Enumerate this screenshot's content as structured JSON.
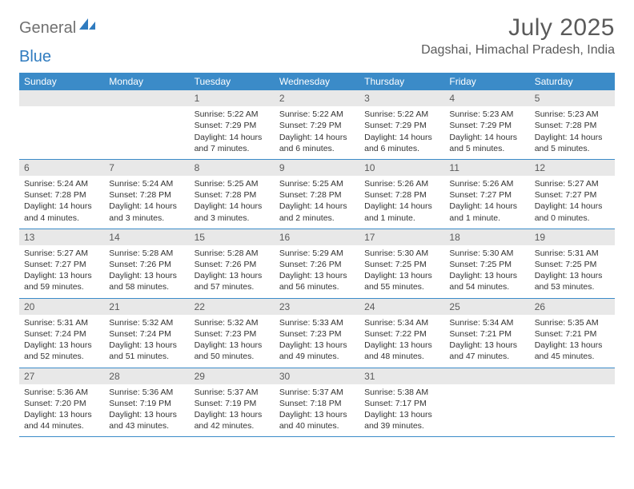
{
  "brand": {
    "general": "General",
    "blue": "Blue"
  },
  "title": "July 2025",
  "location": "Dagshai, Himachal Pradesh, India",
  "colors": {
    "header_bg": "#3b8bc8",
    "header_text": "#ffffff",
    "daynum_bg": "#e8e8e8",
    "text": "#333333",
    "title": "#5a5a5a",
    "rule": "#3b8bc8"
  },
  "typography": {
    "title_fontsize": 30,
    "location_fontsize": 16,
    "weekday_fontsize": 12,
    "daynum_fontsize": 12,
    "body_fontsize": 10.5
  },
  "weekdays": [
    "Sunday",
    "Monday",
    "Tuesday",
    "Wednesday",
    "Thursday",
    "Friday",
    "Saturday"
  ],
  "weeks": [
    [
      null,
      null,
      {
        "num": "1",
        "sunrise": "Sunrise: 5:22 AM",
        "sunset": "Sunset: 7:29 PM",
        "daylight": "Daylight: 14 hours and 7 minutes."
      },
      {
        "num": "2",
        "sunrise": "Sunrise: 5:22 AM",
        "sunset": "Sunset: 7:29 PM",
        "daylight": "Daylight: 14 hours and 6 minutes."
      },
      {
        "num": "3",
        "sunrise": "Sunrise: 5:22 AM",
        "sunset": "Sunset: 7:29 PM",
        "daylight": "Daylight: 14 hours and 6 minutes."
      },
      {
        "num": "4",
        "sunrise": "Sunrise: 5:23 AM",
        "sunset": "Sunset: 7:29 PM",
        "daylight": "Daylight: 14 hours and 5 minutes."
      },
      {
        "num": "5",
        "sunrise": "Sunrise: 5:23 AM",
        "sunset": "Sunset: 7:28 PM",
        "daylight": "Daylight: 14 hours and 5 minutes."
      }
    ],
    [
      {
        "num": "6",
        "sunrise": "Sunrise: 5:24 AM",
        "sunset": "Sunset: 7:28 PM",
        "daylight": "Daylight: 14 hours and 4 minutes."
      },
      {
        "num": "7",
        "sunrise": "Sunrise: 5:24 AM",
        "sunset": "Sunset: 7:28 PM",
        "daylight": "Daylight: 14 hours and 3 minutes."
      },
      {
        "num": "8",
        "sunrise": "Sunrise: 5:25 AM",
        "sunset": "Sunset: 7:28 PM",
        "daylight": "Daylight: 14 hours and 3 minutes."
      },
      {
        "num": "9",
        "sunrise": "Sunrise: 5:25 AM",
        "sunset": "Sunset: 7:28 PM",
        "daylight": "Daylight: 14 hours and 2 minutes."
      },
      {
        "num": "10",
        "sunrise": "Sunrise: 5:26 AM",
        "sunset": "Sunset: 7:28 PM",
        "daylight": "Daylight: 14 hours and 1 minute."
      },
      {
        "num": "11",
        "sunrise": "Sunrise: 5:26 AM",
        "sunset": "Sunset: 7:27 PM",
        "daylight": "Daylight: 14 hours and 1 minute."
      },
      {
        "num": "12",
        "sunrise": "Sunrise: 5:27 AM",
        "sunset": "Sunset: 7:27 PM",
        "daylight": "Daylight: 14 hours and 0 minutes."
      }
    ],
    [
      {
        "num": "13",
        "sunrise": "Sunrise: 5:27 AM",
        "sunset": "Sunset: 7:27 PM",
        "daylight": "Daylight: 13 hours and 59 minutes."
      },
      {
        "num": "14",
        "sunrise": "Sunrise: 5:28 AM",
        "sunset": "Sunset: 7:26 PM",
        "daylight": "Daylight: 13 hours and 58 minutes."
      },
      {
        "num": "15",
        "sunrise": "Sunrise: 5:28 AM",
        "sunset": "Sunset: 7:26 PM",
        "daylight": "Daylight: 13 hours and 57 minutes."
      },
      {
        "num": "16",
        "sunrise": "Sunrise: 5:29 AM",
        "sunset": "Sunset: 7:26 PM",
        "daylight": "Daylight: 13 hours and 56 minutes."
      },
      {
        "num": "17",
        "sunrise": "Sunrise: 5:30 AM",
        "sunset": "Sunset: 7:25 PM",
        "daylight": "Daylight: 13 hours and 55 minutes."
      },
      {
        "num": "18",
        "sunrise": "Sunrise: 5:30 AM",
        "sunset": "Sunset: 7:25 PM",
        "daylight": "Daylight: 13 hours and 54 minutes."
      },
      {
        "num": "19",
        "sunrise": "Sunrise: 5:31 AM",
        "sunset": "Sunset: 7:25 PM",
        "daylight": "Daylight: 13 hours and 53 minutes."
      }
    ],
    [
      {
        "num": "20",
        "sunrise": "Sunrise: 5:31 AM",
        "sunset": "Sunset: 7:24 PM",
        "daylight": "Daylight: 13 hours and 52 minutes."
      },
      {
        "num": "21",
        "sunrise": "Sunrise: 5:32 AM",
        "sunset": "Sunset: 7:24 PM",
        "daylight": "Daylight: 13 hours and 51 minutes."
      },
      {
        "num": "22",
        "sunrise": "Sunrise: 5:32 AM",
        "sunset": "Sunset: 7:23 PM",
        "daylight": "Daylight: 13 hours and 50 minutes."
      },
      {
        "num": "23",
        "sunrise": "Sunrise: 5:33 AM",
        "sunset": "Sunset: 7:23 PM",
        "daylight": "Daylight: 13 hours and 49 minutes."
      },
      {
        "num": "24",
        "sunrise": "Sunrise: 5:34 AM",
        "sunset": "Sunset: 7:22 PM",
        "daylight": "Daylight: 13 hours and 48 minutes."
      },
      {
        "num": "25",
        "sunrise": "Sunrise: 5:34 AM",
        "sunset": "Sunset: 7:21 PM",
        "daylight": "Daylight: 13 hours and 47 minutes."
      },
      {
        "num": "26",
        "sunrise": "Sunrise: 5:35 AM",
        "sunset": "Sunset: 7:21 PM",
        "daylight": "Daylight: 13 hours and 45 minutes."
      }
    ],
    [
      {
        "num": "27",
        "sunrise": "Sunrise: 5:36 AM",
        "sunset": "Sunset: 7:20 PM",
        "daylight": "Daylight: 13 hours and 44 minutes."
      },
      {
        "num": "28",
        "sunrise": "Sunrise: 5:36 AM",
        "sunset": "Sunset: 7:19 PM",
        "daylight": "Daylight: 13 hours and 43 minutes."
      },
      {
        "num": "29",
        "sunrise": "Sunrise: 5:37 AM",
        "sunset": "Sunset: 7:19 PM",
        "daylight": "Daylight: 13 hours and 42 minutes."
      },
      {
        "num": "30",
        "sunrise": "Sunrise: 5:37 AM",
        "sunset": "Sunset: 7:18 PM",
        "daylight": "Daylight: 13 hours and 40 minutes."
      },
      {
        "num": "31",
        "sunrise": "Sunrise: 5:38 AM",
        "sunset": "Sunset: 7:17 PM",
        "daylight": "Daylight: 13 hours and 39 minutes."
      },
      null,
      null
    ]
  ]
}
